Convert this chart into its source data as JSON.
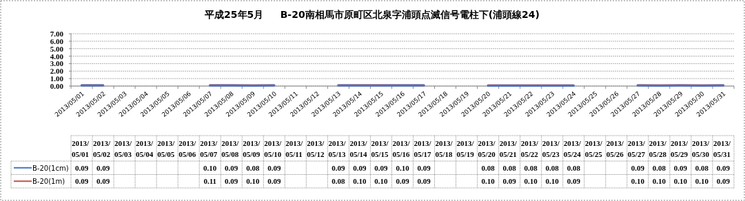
{
  "chart_data": {
    "type": "line",
    "title": "平成25年5月     B-20南相馬市原町区北泉字浦頭点滅信号電柱下(浦頭線24)",
    "categories": [
      "2013/05/01",
      "2013/05/02",
      "2013/05/03",
      "2013/05/04",
      "2013/05/05",
      "2013/05/06",
      "2013/05/07",
      "2013/05/08",
      "2013/05/09",
      "2013/05/10",
      "2013/05/11",
      "2013/05/12",
      "2013/05/13",
      "2013/05/14",
      "2013/05/15",
      "2013/05/16",
      "2013/05/17",
      "2013/05/18",
      "2013/05/19",
      "2013/05/20",
      "2013/05/21",
      "2013/05/22",
      "2013/05/23",
      "2013/05/24",
      "2013/05/25",
      "2013/05/26",
      "2013/05/27",
      "2013/05/28",
      "2013/05/29",
      "2013/05/30",
      "2013/05/31"
    ],
    "series": [
      {
        "name": "B-20(1cm)",
        "color": "#4472c4",
        "values": [
          0.09,
          0.09,
          null,
          null,
          null,
          null,
          0.1,
          0.09,
          0.08,
          0.09,
          null,
          null,
          0.09,
          0.09,
          0.09,
          0.1,
          0.09,
          null,
          null,
          0.08,
          0.08,
          0.08,
          0.08,
          0.08,
          null,
          null,
          0.09,
          0.08,
          0.09,
          0.08,
          0.09
        ],
        "value_labels": [
          "0.09",
          "0.09",
          null,
          null,
          null,
          null,
          "0.10",
          "0.09",
          "0.08",
          "0.09",
          null,
          null,
          "0.09",
          "0.09",
          "0.09",
          "0.10",
          "0.09",
          null,
          null,
          "0.08",
          "0.08",
          "0.08",
          "0.08",
          "0.08",
          null,
          null,
          "0.09",
          "0.08",
          "0.09",
          "0.08",
          "0.09"
        ]
      },
      {
        "name": "B-20(1m)",
        "color": "#c0504d",
        "values": [
          0.09,
          0.09,
          null,
          null,
          null,
          null,
          0.11,
          0.09,
          0.1,
          0.09,
          null,
          null,
          0.08,
          0.1,
          0.1,
          0.09,
          0.09,
          null,
          null,
          0.1,
          0.09,
          0.1,
          0.1,
          0.09,
          null,
          null,
          0.1,
          0.1,
          0.1,
          0.1,
          0.09
        ],
        "value_labels": [
          "0.09",
          "0.09",
          null,
          null,
          null,
          null,
          "0.11",
          "0.09",
          "0.10",
          "0.09",
          null,
          null,
          "0.08",
          "0.10",
          "0.10",
          "0.09",
          "0.09",
          null,
          null,
          "0.10",
          "0.09",
          "0.10",
          "0.10",
          "0.09",
          null,
          null,
          "0.10",
          "0.10",
          "0.10",
          "0.10",
          "0.09"
        ]
      }
    ],
    "ylim": [
      0,
      7
    ],
    "yticks": [
      {
        "value": 0,
        "label": "0.00"
      },
      {
        "value": 1,
        "label": "1.00"
      },
      {
        "value": 2,
        "label": "2.00"
      },
      {
        "value": 3,
        "label": "3.00"
      },
      {
        "value": 4,
        "label": "4.00"
      },
      {
        "value": 5,
        "label": "5.00"
      },
      {
        "value": 6,
        "label": "6.00"
      },
      {
        "value": 7,
        "label": "7.00"
      }
    ],
    "grid": "y",
    "legend": "bottom",
    "line_style": "solid",
    "marker": "none"
  }
}
